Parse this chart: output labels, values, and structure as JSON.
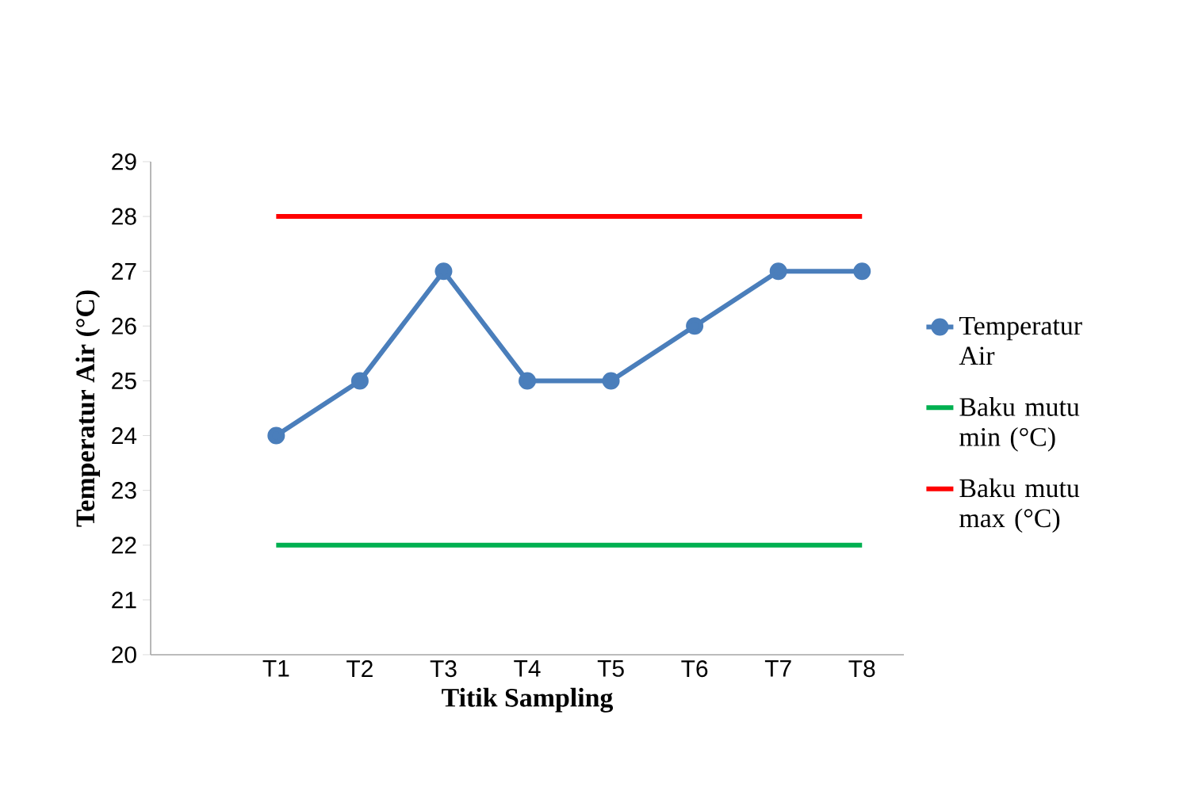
{
  "chart_data": {
    "type": "line",
    "xlabel": "Titik Sampling",
    "ylabel": "Temperatur Air (°C)",
    "categories": [
      null,
      "T1",
      "T2",
      "T3",
      "T4",
      "T5",
      "T6",
      "T7",
      "T8"
    ],
    "series": [
      {
        "name": "Temperatur Air",
        "color": "#4a7ebb",
        "marker": "circle",
        "values": [
          null,
          24,
          25,
          27,
          25,
          25,
          26,
          27,
          27
        ]
      },
      {
        "name": "Baku mutu min (°C)",
        "color": "#00b050",
        "marker": "none",
        "values": [
          null,
          22,
          22,
          22,
          22,
          22,
          22,
          22,
          22
        ]
      },
      {
        "name": "Baku mutu max (°C)",
        "color": "#ff0000",
        "marker": "none",
        "values": [
          null,
          28,
          28,
          28,
          28,
          28,
          28,
          28,
          28
        ]
      }
    ],
    "ylim": [
      20,
      29
    ],
    "yticks": [
      20,
      21,
      22,
      23,
      24,
      25,
      26,
      27,
      28,
      29
    ],
    "grid": false,
    "legend": "right"
  }
}
